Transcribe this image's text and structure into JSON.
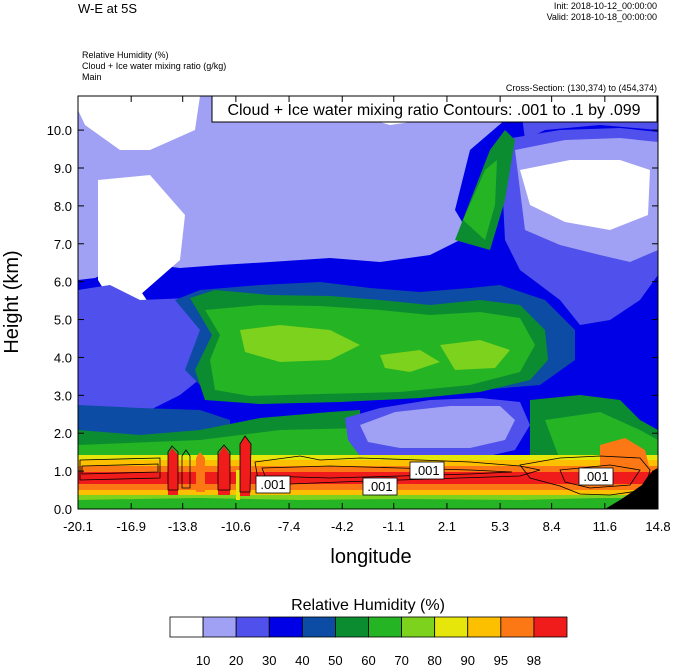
{
  "header": {
    "title": "W-E at 5S",
    "init": "Init: 2018-10-12_00:00:00",
    "valid": "Valid: 2018-10-18_00:00:00",
    "field1": "Relative Humidity   (%)",
    "field2": "Cloud + Ice water mixing ratio   (g/kg)",
    "field3": "Main",
    "cross_section": "Cross-Section: (130,374) to (454,374)"
  },
  "chart_data": {
    "type": "heatmap",
    "xlabel": "longitude",
    "ylabel": "Height (km)",
    "xlim": [
      -20.1,
      14.8
    ],
    "ylim": [
      0.0,
      10.9
    ],
    "x_ticks": [
      "-20.1",
      "-16.9",
      "-13.8",
      "-10.6",
      "-7.4",
      "-4.2",
      "-1.1",
      "2.1",
      "5.3",
      "8.4",
      "11.6",
      "14.8"
    ],
    "y_ticks": [
      "0.0",
      "1.0",
      "2.0",
      "3.0",
      "4.0",
      "5.0",
      "6.0",
      "7.0",
      "8.0",
      "9.0",
      "10.0"
    ],
    "contour_title": "Cloud + Ice water mixing ratio Contours: .001 to .1 by .099",
    "contour_labels": [
      ".001",
      ".001",
      ".001",
      ".001"
    ],
    "colorbar": {
      "title": "Relative Humidity  (%)",
      "labels": [
        "10",
        "20",
        "30",
        "40",
        "50",
        "60",
        "70",
        "80",
        "90",
        "95",
        "98"
      ],
      "colors": [
        "#ffffff",
        "#a0a0f4",
        "#5050ec",
        "#0000e6",
        "#0c4ca4",
        "#0c8c30",
        "#24b424",
        "#7cd21c",
        "#e6e60a",
        "#fcc000",
        "#fc7814",
        "#f01c1c"
      ]
    }
  }
}
